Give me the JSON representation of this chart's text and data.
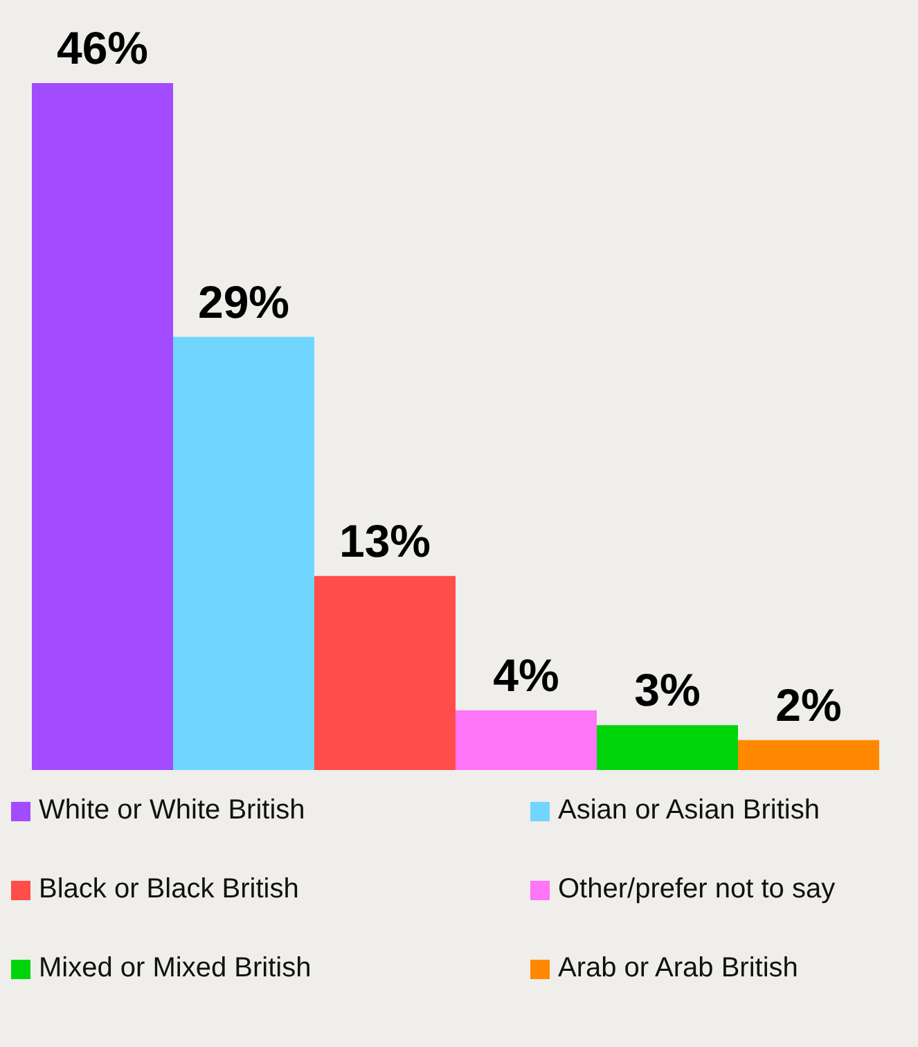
{
  "chart_data": {
    "type": "bar",
    "categories": [
      null
    ],
    "series": [
      {
        "name": "White or White British",
        "color": "#a24bff",
        "values": [
          46
        ],
        "value_labels": [
          "46%"
        ]
      },
      {
        "name": "Asian or Asian British",
        "color": "#70d6ff",
        "values": [
          29
        ],
        "value_labels": [
          "29%"
        ]
      },
      {
        "name": "Black or Black British",
        "color": "#ff4d4a",
        "values": [
          13
        ],
        "value_labels": [
          "13%"
        ]
      },
      {
        "name": "Other/prefer not to say",
        "color": "#ff75f7",
        "values": [
          4
        ],
        "value_labels": [
          "4%"
        ]
      },
      {
        "name": "Mixed or Mixed British",
        "color": "#00d40b",
        "values": [
          3
        ],
        "value_labels": [
          "3%"
        ]
      },
      {
        "name": "Arab or Arab British",
        "color": "#ff8800",
        "values": [
          2
        ],
        "value_labels": [
          "2%"
        ]
      }
    ],
    "legend": "bottom",
    "tick_labels": false,
    "grid": false
  }
}
